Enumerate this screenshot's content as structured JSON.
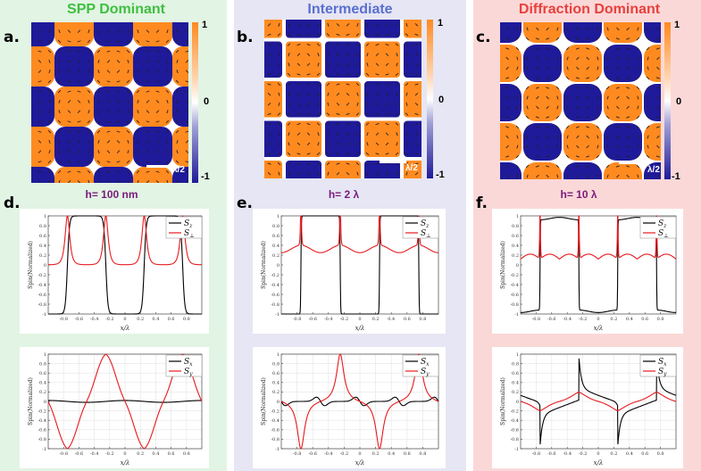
{
  "columns": [
    {
      "title": "SPP Dominant",
      "title_color": "#3fbf3f",
      "bg": "#e2f4e4",
      "map_letter": "a.",
      "plot_letter": "d.",
      "h_label": "h= 100 nm",
      "scale": "λ/2",
      "cbar": {
        "max": "1",
        "mid": "0",
        "min": "-1"
      }
    },
    {
      "title": "Intermediate",
      "title_color": "#5a6fd0",
      "bg": "#e6e6f4",
      "map_letter": "b.",
      "plot_letter": "e.",
      "h_label": "h= 2 λ",
      "scale": "λ/2",
      "cbar": {
        "max": "1",
        "mid": "0",
        "min": "-1"
      }
    },
    {
      "title": "Diffraction Dominant",
      "title_color": "#e8413c",
      "bg": "#fbd8d8",
      "map_letter": "c.",
      "plot_letter": "f.",
      "h_label": "h= 10 λ",
      "scale": "λ/2",
      "cbar": {
        "max": "1",
        "mid": "0",
        "min": "-1"
      }
    }
  ],
  "colors": {
    "orange": "#ff8a1f",
    "blue": "#1f1a9a",
    "black": "#000000",
    "red": "#e8191e"
  },
  "chart_data": [
    {
      "type": "line",
      "panel": "d-top",
      "xlabel": "x/λ",
      "ylabel": "Spin(Normalized)",
      "xlim": [
        -1,
        1
      ],
      "ylim": [
        -1,
        1
      ],
      "xticks": [
        "-0.8",
        "-0.6",
        "-0.4",
        "-0.2",
        "0",
        "0.2",
        "0.4",
        "0.6",
        "0.8"
      ],
      "yticks": [
        "1",
        "0.8",
        "0.6",
        "0.4",
        "0.2",
        "0",
        "-0.2",
        "-0.4",
        "-0.6",
        "-0.8",
        "-1"
      ],
      "legend": [
        "Sz",
        "S⊥"
      ],
      "legend_sub": [
        "z",
        "⊥"
      ],
      "model": "a",
      "grid": false
    },
    {
      "type": "line",
      "panel": "d-bottom",
      "xlabel": "x/λ",
      "ylabel": "Spin(Normalized)",
      "xlim": [
        -1,
        1
      ],
      "ylim": [
        -1,
        1
      ],
      "xticks": [
        "-0.8",
        "-0.6",
        "-0.4",
        "-0.2",
        "0",
        "0.2",
        "0.4",
        "0.6",
        "0.8"
      ],
      "yticks": [
        "1",
        "0.8",
        "0.6",
        "0.4",
        "0.2",
        "0",
        "-0.2",
        "-0.4",
        "-0.6",
        "-0.8",
        "-1"
      ],
      "legend": [
        "Sx",
        "Sy"
      ],
      "legend_sub": [
        "x",
        "y"
      ],
      "model": "b",
      "grid": true
    },
    {
      "type": "line",
      "panel": "e-top",
      "xlabel": "x/λ",
      "ylabel": "Spin(Normalized)",
      "xlim": [
        -1,
        1
      ],
      "ylim": [
        -1,
        1
      ],
      "xticks": [
        "-0.8",
        "-0.6",
        "-0.4",
        "-0.2",
        "0",
        "0.2",
        "0.4",
        "0.6",
        "0.8"
      ],
      "yticks": [
        "1",
        "0.8",
        "0.6",
        "0.4",
        "0.2",
        "0",
        "-0.2",
        "-0.4",
        "-0.6",
        "-0.8",
        "-1"
      ],
      "legend": [
        "Sz",
        "S⊥"
      ],
      "legend_sub": [
        "z",
        "⊥"
      ],
      "model": "c",
      "grid": false
    },
    {
      "type": "line",
      "panel": "e-bottom",
      "xlabel": "x/λ",
      "ylabel": "Spin(Normalized)",
      "xlim": [
        -1,
        1
      ],
      "ylim": [
        -1,
        1
      ],
      "xticks": [
        "-0.8",
        "-0.6",
        "-0.4",
        "-0.2",
        "0",
        "0.2",
        "0.4",
        "0.6",
        "0.8"
      ],
      "yticks": [
        "1",
        "0.8",
        "0.6",
        "0.4",
        "0.2",
        "0",
        "-0.2",
        "-0.4",
        "-0.6",
        "-0.8",
        "-1"
      ],
      "legend": [
        "Sx",
        "Sy"
      ],
      "legend_sub": [
        "x",
        "y"
      ],
      "model": "d",
      "grid": true
    },
    {
      "type": "line",
      "panel": "f-top",
      "xlabel": "x/λ",
      "ylabel": "Spin(Normalized)",
      "xlim": [
        -1,
        1
      ],
      "ylim": [
        -1,
        1
      ],
      "xticks": [
        "-0.8",
        "-0.6",
        "-0.4",
        "-0.2",
        "0",
        "0.2",
        "0.4",
        "0.6",
        "0.8"
      ],
      "yticks": [
        "1",
        "0.8",
        "0.6",
        "0.4",
        "0.2",
        "0",
        "-0.2",
        "-0.4",
        "-0.6",
        "-0.8",
        "-1"
      ],
      "legend": [
        "Sz",
        "S⊥"
      ],
      "legend_sub": [
        "z",
        "⊥"
      ],
      "model": "e",
      "grid": false
    },
    {
      "type": "line",
      "panel": "f-bottom",
      "xlabel": "x/λ",
      "ylabel": "Spin(Normalized)",
      "xlim": [
        -1,
        1
      ],
      "ylim": [
        -1,
        1
      ],
      "xticks": [
        "-0.8",
        "-0.6",
        "-0.4",
        "-0.2",
        "0",
        "0.2",
        "0.4",
        "0.6",
        "0.8"
      ],
      "yticks": [
        "1",
        "0.8",
        "0.6",
        "0.4",
        "0.2",
        "0",
        "-0.2",
        "-0.4",
        "-0.6",
        "-0.8",
        "-1"
      ],
      "legend": [
        "Sx",
        "Sy"
      ],
      "legend_sub": [
        "x",
        "y"
      ],
      "model": "f",
      "grid": true
    }
  ]
}
